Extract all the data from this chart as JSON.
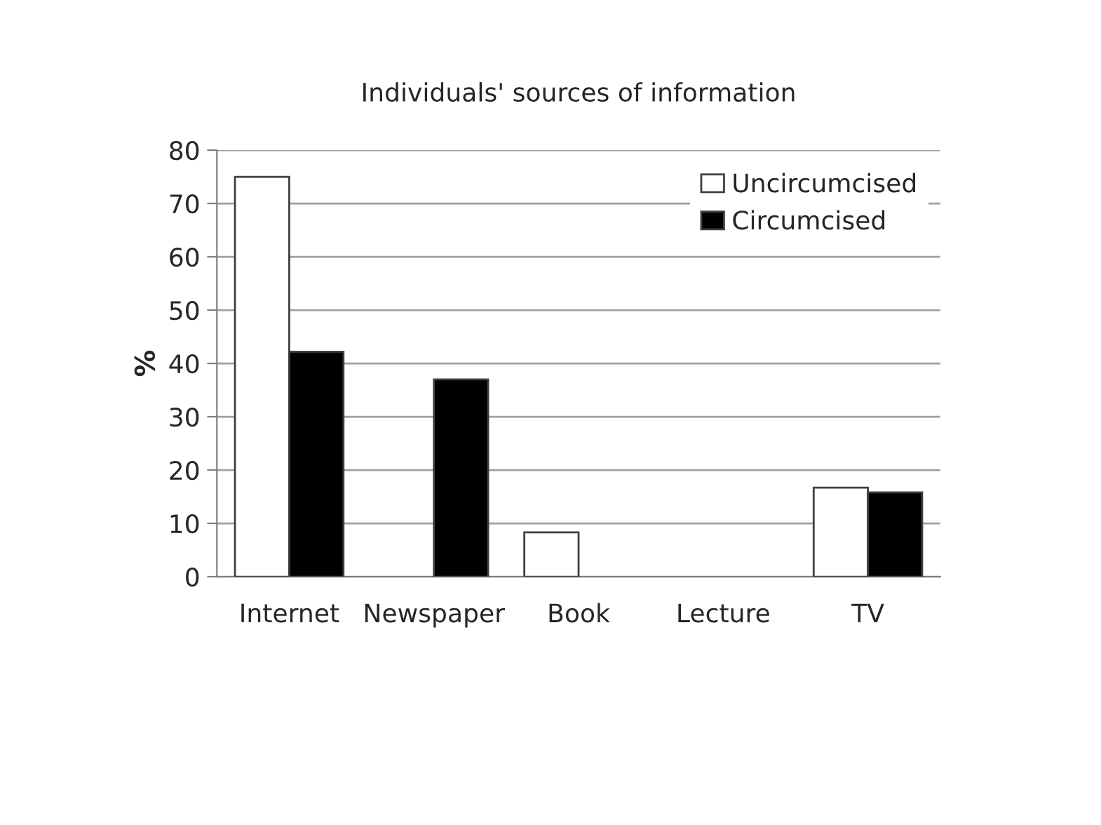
{
  "chart_data": {
    "type": "bar",
    "title": "Individuals' sources of information",
    "ylabel": "%",
    "categories": [
      "Internet",
      "Newspaper",
      "Book",
      "Lecture",
      "TV"
    ],
    "series": [
      {
        "name": "Uncircumcised",
        "color": "#ffffff",
        "values": [
          75,
          null,
          8.3,
          null,
          16.7
        ]
      },
      {
        "name": "Circumcised",
        "color": "#000000",
        "values": [
          42.2,
          37,
          null,
          null,
          15.8
        ]
      }
    ],
    "ylim": [
      0,
      80
    ],
    "yticks": [
      0,
      10,
      20,
      30,
      40,
      50,
      60,
      70,
      80
    ],
    "grid": "y",
    "legend": "top right"
  }
}
